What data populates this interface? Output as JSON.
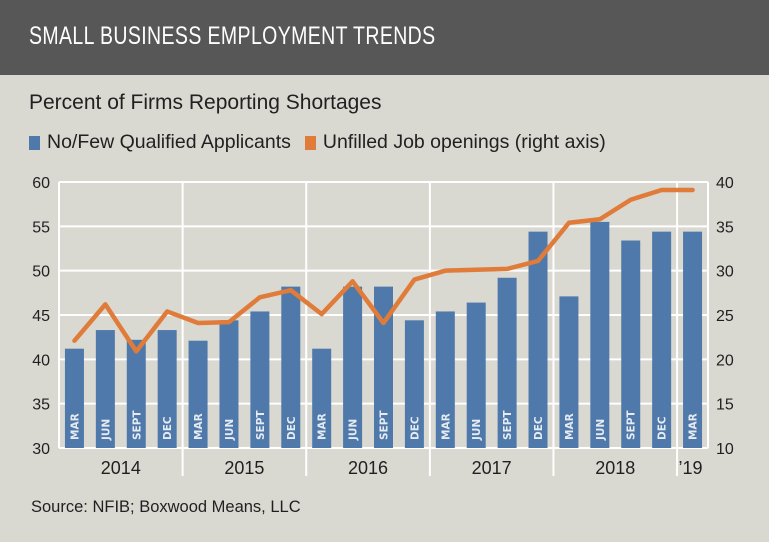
{
  "header": {
    "title": "SMALL BUSINESS EMPLOYMENT TRENDS"
  },
  "source": "Source: NFIB; Boxwood Means, LLC",
  "colors": {
    "header_bg": "#575757",
    "background": "#d9d8d1",
    "bar": "#4f79aa",
    "line": "#e07b39",
    "grid": "#ffffff"
  },
  "chart_data": {
    "type": "bar+line",
    "title": "Percent of Firms Reporting Shortages",
    "categories": [
      "MAR",
      "JUN",
      "SEPT",
      "DEC",
      "MAR",
      "JUN",
      "SEPT",
      "DEC",
      "MAR",
      "JUN",
      "SEPT",
      "DEC",
      "MAR",
      "JUN",
      "SEPT",
      "DEC",
      "MAR",
      "JUN",
      "SEPT",
      "DEC",
      "MAR"
    ],
    "year_groups": [
      {
        "label": "2014",
        "count": 4
      },
      {
        "label": "2015",
        "count": 4
      },
      {
        "label": "2016",
        "count": 4
      },
      {
        "label": "2017",
        "count": 4
      },
      {
        "label": "2018",
        "count": 4
      },
      {
        "label": "’19",
        "count": 1
      }
    ],
    "series": [
      {
        "name": "No/Few Qualified Applicants",
        "type": "bar",
        "axis": "left",
        "values": [
          41.2,
          43.3,
          42.2,
          43.3,
          42.1,
          44.4,
          45.4,
          48.2,
          41.2,
          48.2,
          48.2,
          44.4,
          45.4,
          46.4,
          49.2,
          54.4,
          47.1,
          55.5,
          53.4,
          54.4,
          54.4
        ]
      },
      {
        "name": "Unfilled Job openings (right axis)",
        "type": "line",
        "axis": "right",
        "values": [
          22.1,
          26.2,
          20.9,
          25.4,
          24.1,
          24.2,
          27.0,
          27.8,
          25.1,
          28.8,
          24.1,
          29.0,
          30.0,
          30.1,
          30.2,
          31.1,
          35.4,
          35.8,
          38.0,
          39.1,
          39.1
        ]
      }
    ],
    "left_axis": {
      "min": 30,
      "max": 60,
      "ticks": [
        "30",
        "35",
        "40",
        "45",
        "50",
        "55",
        "60"
      ]
    },
    "right_axis": {
      "min": 10,
      "max": 40,
      "ticks": [
        "10",
        "15",
        "20",
        "25",
        "30",
        "35",
        "40"
      ]
    },
    "grid": true,
    "legend_position": "top-left"
  }
}
